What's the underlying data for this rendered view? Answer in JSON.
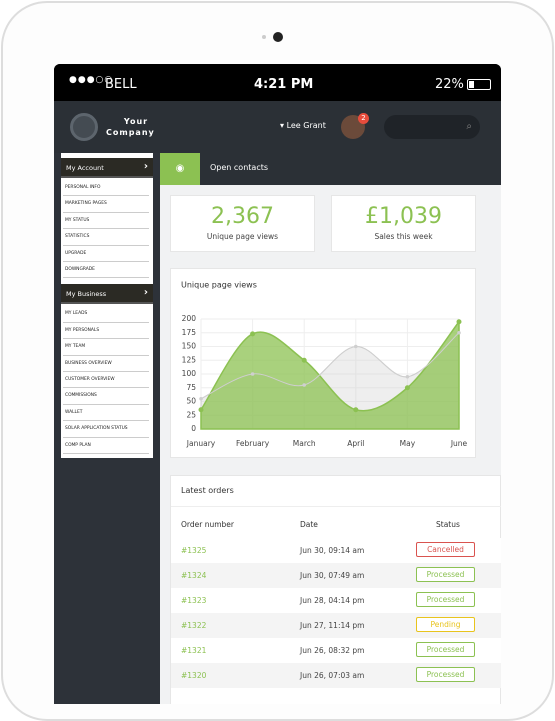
{
  "status_bar": {
    "carrier": "BELL",
    "time": "4:21 PM",
    "battery": "22%"
  },
  "header": {
    "company": [
      "Your",
      "Company"
    ],
    "user": "Lee Grant",
    "notifications": "2"
  },
  "sidebar": {
    "sections": [
      {
        "title": "My Account",
        "items": [
          "PERSONAL INFO",
          "MARKETING PAGES",
          "MY STATUS",
          "STATISTICS",
          "UPGRADE",
          "DOWNGRADE"
        ]
      },
      {
        "title": "My Business",
        "items": [
          "MY LEADS",
          "MY PERSONALS",
          "MY TEAM",
          "BUSINESS OVERVIEW",
          "CUSTOMER OVERVIEW",
          "COMMISSIONS",
          "WALLET",
          "SOLAR APPLICATION STATUS",
          "COMP PLAN"
        ]
      }
    ]
  },
  "tab": "Open contacts",
  "stats": [
    {
      "value": "2,367",
      "label": "Unique page views"
    },
    {
      "value": "£1,039",
      "label": "Sales this week"
    }
  ],
  "chart": {
    "type": "area",
    "title": "Unique page views",
    "categories": [
      "January",
      "February",
      "March",
      "April",
      "May",
      "June"
    ],
    "series": [
      {
        "color": "#8cc152",
        "values": [
          35,
          173,
          125,
          35,
          75,
          195
        ]
      },
      {
        "color": "#cfcfcf",
        "values": [
          55,
          100,
          80,
          150,
          95,
          175
        ]
      }
    ],
    "ylim": [
      0,
      200
    ],
    "yticks": [
      0,
      25,
      50,
      75,
      100,
      125,
      150,
      175,
      200
    ],
    "grid": true
  },
  "orders": {
    "title": "Latest orders",
    "columns": [
      "Order number",
      "Date",
      "Status"
    ],
    "rows": [
      {
        "number": "#1325",
        "date": "Jun 30, 09:14 am",
        "status": "Cancelled",
        "color": "#d9534f"
      },
      {
        "number": "#1324",
        "date": "Jun 30, 07:49 am",
        "status": "Processed",
        "color": "#8cc152"
      },
      {
        "number": "#1323",
        "date": "Jun 28, 04:14 pm",
        "status": "Processed",
        "color": "#8cc152"
      },
      {
        "number": "#1322",
        "date": "Jun 27, 11:14 pm",
        "status": "Pending",
        "color": "#e8c41c"
      },
      {
        "number": "#1321",
        "date": "Jun 26, 08:32 pm",
        "status": "Processed",
        "color": "#8cc152"
      },
      {
        "number": "#1320",
        "date": "Jun 26, 07:03 am",
        "status": "Processed",
        "color": "#8cc152"
      }
    ]
  }
}
